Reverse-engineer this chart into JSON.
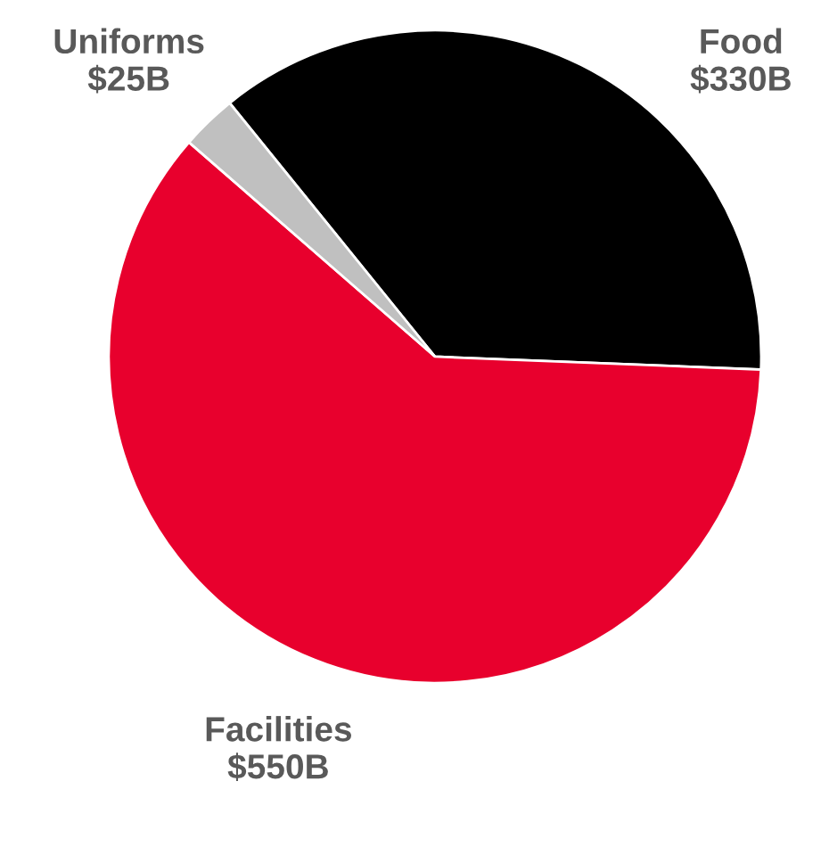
{
  "chart_data": {
    "type": "pie",
    "categories": [
      "Food",
      "Facilities",
      "Uniforms"
    ],
    "values": [
      330,
      550,
      25
    ],
    "colors": [
      "#000000",
      "#e8002d",
      "#c0c0c0"
    ],
    "value_labels": [
      "$330B",
      "$550B",
      "$25B"
    ]
  }
}
